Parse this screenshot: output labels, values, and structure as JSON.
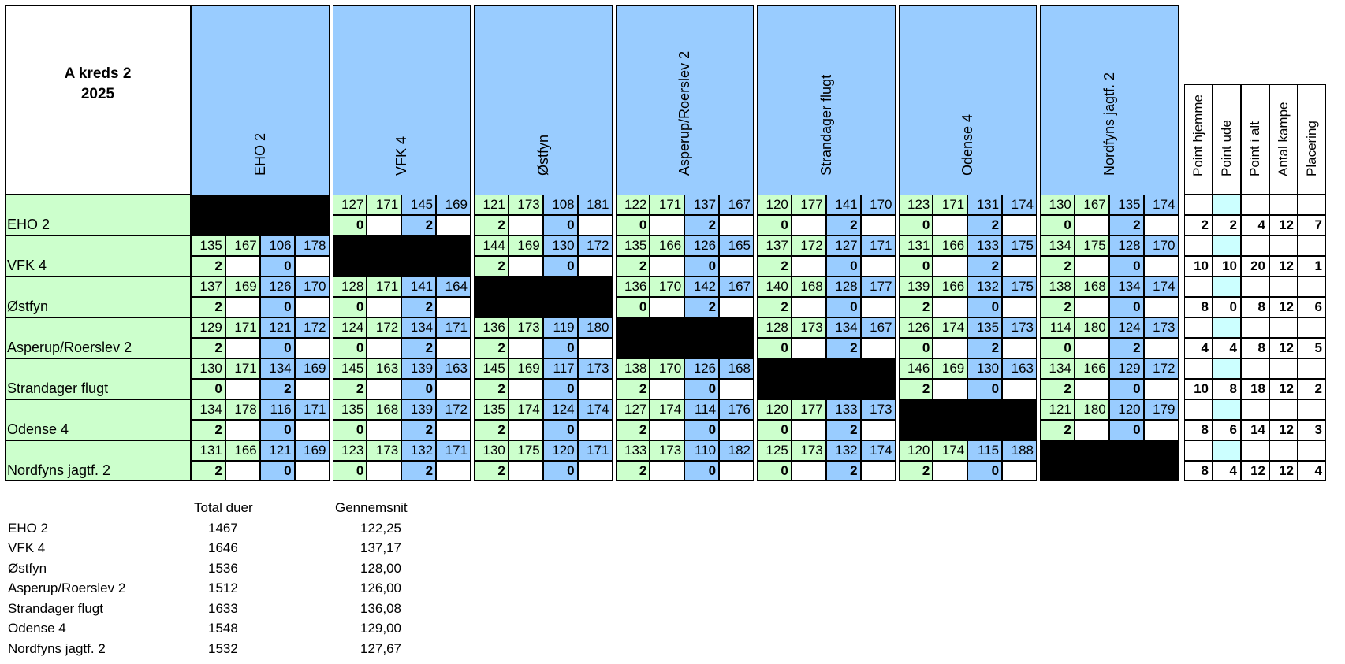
{
  "title": {
    "line1": "A kreds 2",
    "line2": "2025"
  },
  "teams": [
    "EHO 2",
    "VFK 4",
    "Østfyn",
    "Asperup/Roerslev 2",
    "Strandager flugt",
    "Odense 4",
    "Nordfyns jagtf. 2"
  ],
  "summary_headers": [
    "Point hjemme",
    "Point ude",
    "Point i alt",
    "Antal kampe",
    "Placering"
  ],
  "matrix": [
    [
      null,
      [
        "127",
        "171",
        "145",
        "169",
        "0",
        "2"
      ],
      [
        "121",
        "173",
        "108",
        "181",
        "2",
        "0"
      ],
      [
        "122",
        "171",
        "137",
        "167",
        "0",
        "2"
      ],
      [
        "120",
        "177",
        "141",
        "170",
        "0",
        "2"
      ],
      [
        "123",
        "171",
        "131",
        "174",
        "0",
        "2"
      ],
      [
        "130",
        "167",
        "135",
        "174",
        "0",
        "2"
      ]
    ],
    [
      [
        "135",
        "167",
        "106",
        "178",
        "2",
        "0"
      ],
      null,
      [
        "144",
        "169",
        "130",
        "172",
        "2",
        "0"
      ],
      [
        "135",
        "166",
        "126",
        "165",
        "2",
        "0"
      ],
      [
        "137",
        "172",
        "127",
        "171",
        "2",
        "0"
      ],
      [
        "131",
        "166",
        "133",
        "175",
        "0",
        "2"
      ],
      [
        "134",
        "175",
        "128",
        "170",
        "2",
        "0"
      ]
    ],
    [
      [
        "137",
        "169",
        "126",
        "170",
        "2",
        "0"
      ],
      [
        "128",
        "171",
        "141",
        "164",
        "0",
        "2"
      ],
      null,
      [
        "136",
        "170",
        "142",
        "167",
        "0",
        "2"
      ],
      [
        "140",
        "168",
        "128",
        "177",
        "2",
        "0"
      ],
      [
        "139",
        "166",
        "132",
        "175",
        "2",
        "0"
      ],
      [
        "138",
        "168",
        "134",
        "174",
        "2",
        "0"
      ]
    ],
    [
      [
        "129",
        "171",
        "121",
        "172",
        "2",
        "0"
      ],
      [
        "124",
        "172",
        "134",
        "171",
        "0",
        "2"
      ],
      [
        "136",
        "173",
        "119",
        "180",
        "2",
        "0"
      ],
      null,
      [
        "128",
        "173",
        "134",
        "167",
        "0",
        "2"
      ],
      [
        "126",
        "174",
        "135",
        "173",
        "0",
        "2"
      ],
      [
        "114",
        "180",
        "124",
        "173",
        "0",
        "2"
      ]
    ],
    [
      [
        "130",
        "171",
        "134",
        "169",
        "0",
        "2"
      ],
      [
        "145",
        "163",
        "139",
        "163",
        "2",
        "0"
      ],
      [
        "145",
        "169",
        "117",
        "173",
        "2",
        "0"
      ],
      [
        "138",
        "170",
        "126",
        "168",
        "2",
        "0"
      ],
      null,
      [
        "146",
        "169",
        "130",
        "163",
        "2",
        "0"
      ],
      [
        "134",
        "166",
        "129",
        "172",
        "2",
        "0"
      ]
    ],
    [
      [
        "134",
        "178",
        "116",
        "171",
        "2",
        "0"
      ],
      [
        "135",
        "168",
        "139",
        "172",
        "0",
        "2"
      ],
      [
        "135",
        "174",
        "124",
        "174",
        "2",
        "0"
      ],
      [
        "127",
        "174",
        "114",
        "176",
        "2",
        "0"
      ],
      [
        "120",
        "177",
        "133",
        "173",
        "0",
        "2"
      ],
      null,
      [
        "121",
        "180",
        "120",
        "179",
        "2",
        "0"
      ]
    ],
    [
      [
        "131",
        "166",
        "121",
        "169",
        "2",
        "0"
      ],
      [
        "123",
        "173",
        "132",
        "171",
        "0",
        "2"
      ],
      [
        "130",
        "175",
        "120",
        "171",
        "2",
        "0"
      ],
      [
        "133",
        "173",
        "110",
        "182",
        "2",
        "0"
      ],
      [
        "125",
        "173",
        "132",
        "174",
        "0",
        "2"
      ],
      [
        "120",
        "174",
        "115",
        "188",
        "2",
        "0"
      ],
      null
    ]
  ],
  "summary": [
    [
      "2",
      "2",
      "4",
      "12",
      "7"
    ],
    [
      "10",
      "10",
      "20",
      "12",
      "1"
    ],
    [
      "8",
      "0",
      "8",
      "12",
      "6"
    ],
    [
      "4",
      "4",
      "8",
      "12",
      "5"
    ],
    [
      "10",
      "8",
      "18",
      "12",
      "2"
    ],
    [
      "8",
      "6",
      "14",
      "12",
      "3"
    ],
    [
      "8",
      "4",
      "12",
      "12",
      "4"
    ]
  ],
  "stats": {
    "header_total": "Total duer",
    "header_avg": "Gennemsnit",
    "rows": [
      {
        "team": "EHO 2",
        "total": "1467",
        "avg": "122,25"
      },
      {
        "team": "VFK 4",
        "total": "1646",
        "avg": "137,17"
      },
      {
        "team": "Østfyn",
        "total": "1536",
        "avg": "128,00"
      },
      {
        "team": "Asperup/Roerslev 2",
        "total": "1512",
        "avg": "126,00"
      },
      {
        "team": "Strandager flugt",
        "total": "1633",
        "avg": "136,08"
      },
      {
        "team": "Odense 4",
        "total": "1548",
        "avg": "129,00"
      },
      {
        "team": "Nordfyns jagtf. 2",
        "total": "1532",
        "avg": "127,67"
      }
    ]
  },
  "colors": {
    "green": "#ccffcc",
    "blue": "#99ccff",
    "light_blue": "#ccffff",
    "block": "#000000"
  }
}
